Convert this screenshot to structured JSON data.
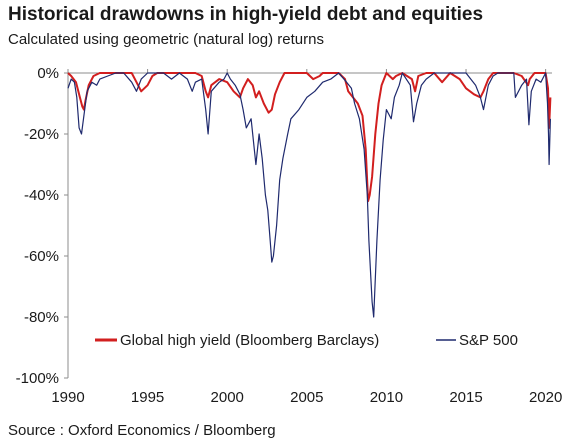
{
  "chart_data": {
    "type": "line",
    "title": "Historical drawdowns in high-yield debt and equities",
    "subtitle": "Calculated using geometric (natural log) returns",
    "source": "Source : Oxford Economics / Bloomberg",
    "ylim": [
      -100,
      0
    ],
    "xlim": [
      1990,
      2020.4
    ],
    "yticks": [
      0,
      -20,
      -40,
      -60,
      -80,
      -100
    ],
    "ytick_labels": [
      "0%",
      "-20%",
      "-40%",
      "-60%",
      "-80%",
      "-100%"
    ],
    "xticks": [
      1990,
      1995,
      2000,
      2005,
      2010,
      2015,
      2020
    ],
    "xtick_labels": [
      "1990",
      "1995",
      "2000",
      "2005",
      "2010",
      "2015",
      "2020"
    ],
    "grid": false,
    "legend_position": "bottom",
    "series": [
      {
        "name": "Global high yield (Bloomberg Barclays)",
        "color": "#d21f1f",
        "x": [
          1990.0,
          1990.2,
          1990.5,
          1990.75,
          1990.9,
          1991.0,
          1991.1,
          1991.3,
          1991.6,
          1992.0,
          1992.5,
          1993.0,
          1993.5,
          1994.0,
          1994.3,
          1994.6,
          1995.0,
          1995.3,
          1995.6,
          1996.0,
          1996.5,
          1997.0,
          1997.5,
          1998.0,
          1998.4,
          1998.65,
          1998.8,
          1999.0,
          1999.5,
          2000.0,
          2000.4,
          2000.8,
          2001.0,
          2001.3,
          2001.6,
          2001.8,
          2002.0,
          2002.3,
          2002.6,
          2002.8,
          2003.0,
          2003.3,
          2003.6,
          2004.0,
          2004.5,
          2005.0,
          2005.4,
          2005.8,
          2006.0,
          2006.5,
          2007.0,
          2007.4,
          2007.6,
          2007.9,
          2008.2,
          2008.5,
          2008.7,
          2008.85,
          2008.95,
          2009.1,
          2009.3,
          2009.5,
          2009.7,
          2010.0,
          2010.4,
          2010.6,
          2011.0,
          2011.6,
          2011.8,
          2012.0,
          2012.5,
          2013.0,
          2013.5,
          2014.0,
          2014.6,
          2015.0,
          2015.5,
          2015.9,
          2016.1,
          2016.4,
          2016.7,
          2017.0,
          2017.5,
          2018.0,
          2018.5,
          2018.9,
          2019.0,
          2019.3,
          2019.6,
          2020.0,
          2020.15,
          2020.22,
          2020.3
        ],
        "values": [
          0,
          -1,
          -3,
          -8,
          -11,
          -12,
          -9,
          -4,
          -1,
          0,
          0,
          0,
          0,
          0,
          -3,
          -6,
          -4,
          -1,
          0,
          0,
          0,
          0,
          0,
          0,
          -1,
          -6,
          -8,
          -4,
          -2,
          -3,
          -6,
          -8,
          -5,
          -2,
          -4,
          -8,
          -6,
          -10,
          -13,
          -12,
          -7,
          -3,
          0,
          0,
          0,
          0,
          -2,
          -1,
          0,
          0,
          0,
          -2,
          -6,
          -8,
          -10,
          -14,
          -25,
          -42,
          -40,
          -34,
          -20,
          -10,
          -4,
          0,
          -2,
          -1,
          0,
          -2,
          -6,
          -1,
          0,
          0,
          -3,
          0,
          -2,
          -5,
          -7,
          -8,
          -6,
          -2,
          0,
          0,
          0,
          0,
          -1,
          -4,
          -2,
          0,
          0,
          0,
          -5,
          -18,
          -8
        ]
      },
      {
        "name": "S&P 500",
        "color": "#1f2a6e",
        "x": [
          1990.0,
          1990.2,
          1990.4,
          1990.55,
          1990.7,
          1990.85,
          1991.0,
          1991.2,
          1991.5,
          1991.8,
          1992.0,
          1992.5,
          1993.0,
          1993.5,
          1994.0,
          1994.3,
          1994.6,
          1995.0,
          1995.5,
          1996.0,
          1996.5,
          1997.0,
          1997.5,
          1997.8,
          1998.0,
          1998.4,
          1998.65,
          1998.8,
          1999.0,
          1999.5,
          1999.8,
          2000.0,
          2000.2,
          2000.5,
          2000.8,
          2001.0,
          2001.2,
          2001.5,
          2001.7,
          2001.8,
          2002.0,
          2002.2,
          2002.4,
          2002.55,
          2002.7,
          2002.8,
          2002.9,
          2003.1,
          2003.3,
          2003.5,
          2003.8,
          2004.0,
          2004.5,
          2005.0,
          2005.5,
          2006.0,
          2006.5,
          2007.0,
          2007.5,
          2007.8,
          2008.0,
          2008.3,
          2008.6,
          2008.8,
          2008.9,
          2009.0,
          2009.1,
          2009.2,
          2009.4,
          2009.6,
          2009.8,
          2010.0,
          2010.3,
          2010.5,
          2010.8,
          2011.0,
          2011.5,
          2011.7,
          2011.9,
          2012.2,
          2012.5,
          2013.0,
          2013.5,
          2014.0,
          2014.5,
          2015.0,
          2015.6,
          2015.9,
          2016.1,
          2016.4,
          2016.7,
          2017.0,
          2017.5,
          2018.0,
          2018.1,
          2018.5,
          2018.8,
          2018.95,
          2019.1,
          2019.4,
          2019.7,
          2020.0,
          2020.12,
          2020.18,
          2020.22,
          2020.3
        ],
        "values": [
          -5,
          -2,
          -3,
          -8,
          -18,
          -20,
          -14,
          -6,
          -3,
          -4,
          -2,
          -1,
          0,
          0,
          -3,
          -6,
          -2,
          0,
          0,
          0,
          -2,
          0,
          -2,
          -6,
          -3,
          -2,
          -12,
          -20,
          -6,
          -3,
          -2,
          0,
          -2,
          -4,
          -7,
          -12,
          -18,
          -15,
          -25,
          -30,
          -20,
          -28,
          -40,
          -45,
          -55,
          -62,
          -60,
          -50,
          -35,
          -28,
          -20,
          -15,
          -12,
          -8,
          -6,
          -3,
          -2,
          0,
          -3,
          -5,
          -10,
          -15,
          -25,
          -40,
          -55,
          -65,
          -75,
          -80,
          -55,
          -35,
          -22,
          -12,
          -15,
          -8,
          -4,
          0,
          -4,
          -16,
          -10,
          -4,
          -2,
          0,
          0,
          0,
          0,
          0,
          -4,
          -8,
          -12,
          -4,
          -1,
          0,
          0,
          0,
          -8,
          -4,
          -2,
          -17,
          -6,
          -2,
          -3,
          0,
          -10,
          -20,
          -30,
          -15
        ]
      }
    ]
  }
}
